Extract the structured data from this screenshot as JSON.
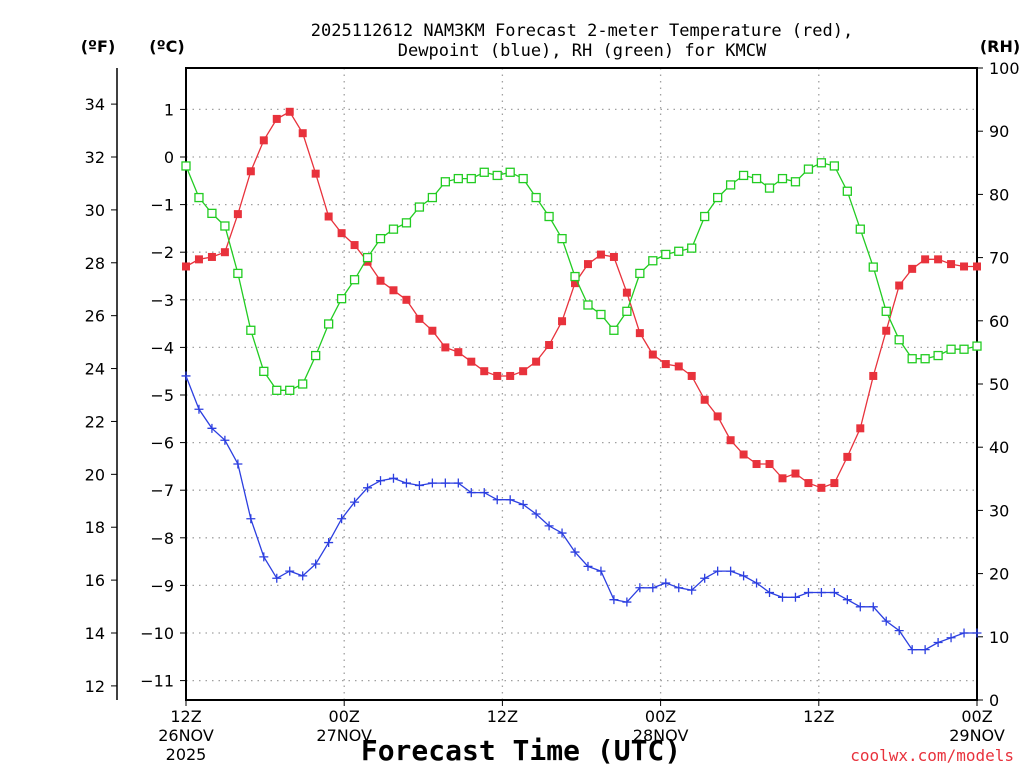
{
  "chart_data": {
    "type": "line",
    "title_lines": [
      "2025112612 NAM3KM Forecast 2-meter Temperature (red),",
      "Dewpoint (blue), RH (green) for KMCW"
    ],
    "units": {
      "fahrenheit": "(ºF)",
      "celsius": "(ºC)",
      "rh": "(RH)"
    },
    "xlabel": "Forecast Time (UTC)",
    "credit": "coolwx.com/models",
    "x_range_hours": [
      0,
      60
    ],
    "x_ticks": [
      {
        "hour": 0,
        "lines": [
          "12Z",
          "26NOV",
          "2025"
        ]
      },
      {
        "hour": 12,
        "lines": [
          "00Z",
          "27NOV"
        ]
      },
      {
        "hour": 24,
        "lines": [
          "12Z"
        ]
      },
      {
        "hour": 36,
        "lines": [
          "00Z",
          "28NOV"
        ]
      },
      {
        "hour": 48,
        "lines": [
          "12Z"
        ]
      },
      {
        "hour": 60,
        "lines": [
          "00Z",
          "29NOV"
        ]
      }
    ],
    "y_left_celsius": {
      "range": [
        -11.5,
        1.8
      ],
      "ticks": [
        "1",
        "0",
        "−1",
        "−2",
        "−3",
        "−4",
        "−5",
        "−6",
        "−7",
        "−8",
        "−9",
        "−10",
        "−11"
      ],
      "tick_values": [
        1,
        0,
        -1,
        -2,
        -3,
        -4,
        -5,
        -6,
        -7,
        -8,
        -9,
        -10,
        -11
      ]
    },
    "y_left_fahrenheit": {
      "ticks": [
        "34",
        "32",
        "30",
        "28",
        "26",
        "24",
        "22",
        "20",
        "18",
        "16",
        "14",
        "12"
      ],
      "tick_values": [
        34,
        32,
        30,
        28,
        26,
        24,
        22,
        20,
        18,
        16,
        14,
        12
      ]
    },
    "y_right_rh": {
      "range": [
        0,
        100
      ],
      "ticks": [
        "100",
        "90",
        "80",
        "70",
        "60",
        "50",
        "40",
        "30",
        "20",
        "10",
        "0"
      ],
      "tick_values": [
        100,
        90,
        80,
        70,
        60,
        50,
        40,
        30,
        20,
        10,
        0
      ]
    },
    "grid": true,
    "series": [
      {
        "name": "Temperature",
        "axis": "celsius",
        "color": "#e8323c",
        "marker": "filled-square",
        "values": [
          -2.3,
          -2.15,
          -2.1,
          -2.0,
          -1.2,
          -0.3,
          0.35,
          0.8,
          0.95,
          0.5,
          -0.35,
          -1.25,
          -1.6,
          -1.85,
          -2.2,
          -2.6,
          -2.8,
          -3.0,
          -3.4,
          -3.65,
          -4.0,
          -4.1,
          -4.3,
          -4.5,
          -4.6,
          -4.6,
          -4.5,
          -4.3,
          -3.95,
          -3.45,
          -2.65,
          -2.25,
          -2.05,
          -2.1,
          -2.85,
          -3.7,
          -4.15,
          -4.35,
          -4.4,
          -4.6,
          -5.1,
          -5.45,
          -5.95,
          -6.25,
          -6.45,
          -6.45,
          -6.75,
          -6.65,
          -6.85,
          -6.95,
          -6.85,
          -6.3,
          -5.7,
          -4.6,
          -3.65,
          -2.7,
          -2.35,
          -2.15,
          -2.15,
          -2.25,
          -2.3,
          -2.3
        ]
      },
      {
        "name": "Dewpoint",
        "axis": "celsius",
        "color": "#2c3fe0",
        "marker": "plus",
        "values": [
          -4.6,
          -5.3,
          -5.7,
          -5.95,
          -6.45,
          -7.6,
          -8.4,
          -8.85,
          -8.7,
          -8.8,
          -8.55,
          -8.1,
          -7.6,
          -7.25,
          -6.95,
          -6.8,
          -6.75,
          -6.85,
          -6.9,
          -6.85,
          -6.85,
          -6.85,
          -7.05,
          -7.05,
          -7.2,
          -7.2,
          -7.3,
          -7.5,
          -7.75,
          -7.9,
          -8.3,
          -8.6,
          -8.7,
          -9.3,
          -9.35,
          -9.05,
          -9.05,
          -8.95,
          -9.05,
          -9.1,
          -8.85,
          -8.7,
          -8.7,
          -8.8,
          -8.95,
          -9.15,
          -9.25,
          -9.25,
          -9.15,
          -9.15,
          -9.15,
          -9.3,
          -9.45,
          -9.45,
          -9.75,
          -9.95,
          -10.35,
          -10.35,
          -10.2,
          -10.1,
          -10.0,
          -10.0
        ]
      },
      {
        "name": "RH",
        "axis": "rh",
        "color": "#22cc22",
        "marker": "open-square",
        "values": [
          84.5,
          79.5,
          77.0,
          75.0,
          67.5,
          58.5,
          52.0,
          49.0,
          49.0,
          50.0,
          54.5,
          59.5,
          63.5,
          66.5,
          70.0,
          73.0,
          74.5,
          75.5,
          78.0,
          79.5,
          82.0,
          82.5,
          82.5,
          83.5,
          83.0,
          83.5,
          82.5,
          79.5,
          76.5,
          73.0,
          67.0,
          62.5,
          61.0,
          58.5,
          61.5,
          67.5,
          69.5,
          70.5,
          71.0,
          71.5,
          76.5,
          79.5,
          81.5,
          83.0,
          82.5,
          81.0,
          82.5,
          82.0,
          84.0,
          85.0,
          84.5,
          80.5,
          74.5,
          68.5,
          61.5,
          57.0,
          54.0,
          54.0,
          54.5,
          55.5,
          55.5,
          56.0
        ]
      }
    ]
  }
}
